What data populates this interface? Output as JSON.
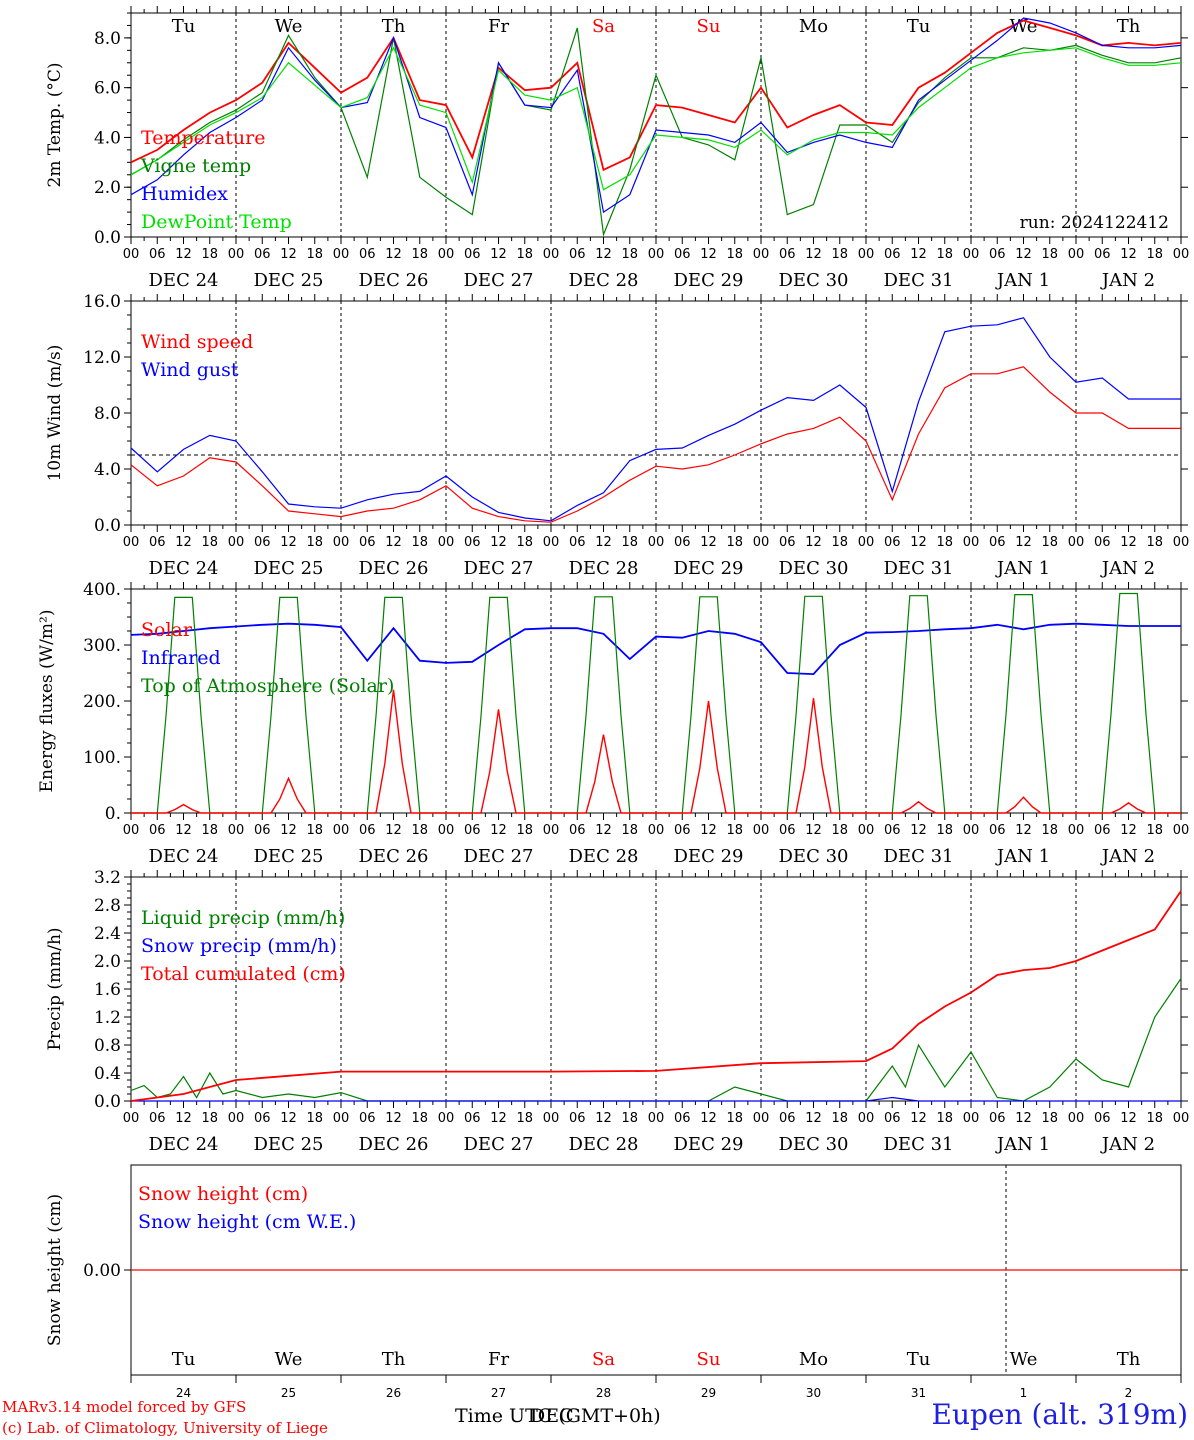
{
  "chart_data": {
    "type": "line",
    "run_label": "run: 2024122412",
    "location": "Eupen (alt. 319m)",
    "credit_line1": "MARv3.14 model forced by GFS",
    "credit_line2": "(c) Lab. of Climatology, University of Liege",
    "xlabel": "Time UTC (GMT+0h)",
    "x_overlap_text": "DEC",
    "x_range_hours": [
      0,
      240
    ],
    "hour_tick_labels": [
      "00",
      "06",
      "12",
      "18"
    ],
    "final_hour_label": "00",
    "date_labels": [
      "DEC 24",
      "DEC 25",
      "DEC 26",
      "DEC 27",
      "DEC 28",
      "DEC 29",
      "DEC 30",
      "DEC 31",
      "JAN  1",
      "JAN  2"
    ],
    "weekdays": [
      "Tu",
      "We",
      "Th",
      "Fr",
      "Sa",
      "Su",
      "Mo",
      "Tu",
      "We",
      "Th"
    ],
    "weekday_colors": [
      "#000000",
      "#000000",
      "#000000",
      "#000000",
      "#ff0000",
      "#ff0000",
      "#000000",
      "#000000",
      "#000000",
      "#000000"
    ],
    "bottom_day_numbers": [
      "24",
      "25",
      "26",
      "27",
      "28",
      "29",
      "30",
      "31",
      "1",
      "2"
    ],
    "panels": [
      {
        "id": "temperature",
        "ylabel": "2m Temp. (°C)",
        "ylim": [
          0,
          9
        ],
        "yticks": [
          0,
          2,
          4,
          6,
          8
        ],
        "ytick_labels": [
          "0.0",
          "2.0",
          "4.0",
          "6.0",
          "8.0"
        ],
        "legend": [
          "Temperature",
          "Vigne temp",
          "Humidex",
          "DewPoint Temp"
        ],
        "series": [
          {
            "name": "Temperature",
            "color": "#ff0000",
            "x": [
              0,
              6,
              12,
              18,
              24,
              30,
              36,
              42,
              48,
              54,
              60,
              66,
              72,
              78,
              84,
              90,
              96,
              102,
              108,
              114,
              120,
              126,
              132,
              138,
              144,
              150,
              156,
              162,
              168,
              174,
              180,
              186,
              192,
              198,
              204,
              210,
              216,
              222,
              228,
              234,
              240
            ],
            "values": [
              3.0,
              3.5,
              4.3,
              5.0,
              5.5,
              6.2,
              7.8,
              6.8,
              5.8,
              6.4,
              8.0,
              5.5,
              5.3,
              3.2,
              6.8,
              5.9,
              6.0,
              7.0,
              2.7,
              3.2,
              5.3,
              5.2,
              4.9,
              4.6,
              6.0,
              4.4,
              4.9,
              5.3,
              4.6,
              4.5,
              6.0,
              6.6,
              7.4,
              8.2,
              8.7,
              8.4,
              8.1,
              7.7,
              7.8,
              7.7,
              7.8
            ]
          },
          {
            "name": "Vigne temp",
            "color": "#008000",
            "x": [
              0,
              6,
              12,
              18,
              24,
              30,
              36,
              42,
              48,
              54,
              60,
              66,
              72,
              78,
              84,
              90,
              96,
              102,
              108,
              114,
              120,
              126,
              132,
              138,
              144,
              150,
              156,
              162,
              168,
              174,
              180,
              186,
              192,
              198,
              204,
              210,
              216,
              222,
              228,
              234,
              240
            ],
            "values": [
              2.5,
              3.1,
              3.9,
              4.6,
              5.1,
              5.8,
              8.1,
              6.4,
              5.2,
              2.4,
              8.0,
              2.4,
              1.6,
              0.9,
              7.0,
              5.3,
              5.1,
              8.4,
              0.1,
              2.7,
              6.5,
              4.0,
              3.7,
              3.1,
              7.2,
              0.9,
              1.3,
              4.5,
              4.5,
              3.8,
              5.4,
              6.4,
              7.2,
              7.2,
              7.6,
              7.5,
              7.7,
              7.3,
              7.0,
              7.0,
              7.2
            ]
          },
          {
            "name": "Humidex",
            "color": "#0000ff",
            "x": [
              0,
              6,
              12,
              18,
              24,
              30,
              36,
              42,
              48,
              54,
              60,
              66,
              72,
              78,
              84,
              90,
              96,
              102,
              108,
              114,
              120,
              126,
              132,
              138,
              144,
              150,
              156,
              162,
              168,
              174,
              180,
              186,
              192,
              198,
              204,
              210,
              216,
              222,
              228,
              234,
              240
            ],
            "values": [
              1.7,
              2.3,
              3.3,
              4.2,
              4.8,
              5.5,
              7.6,
              6.3,
              5.2,
              5.4,
              8.0,
              4.8,
              4.4,
              1.7,
              7.0,
              5.3,
              5.2,
              6.7,
              1.0,
              1.7,
              4.3,
              4.2,
              4.1,
              3.8,
              4.6,
              3.4,
              3.8,
              4.1,
              3.8,
              3.6,
              5.5,
              6.3,
              7.1,
              7.9,
              8.8,
              8.6,
              8.2,
              7.7,
              7.6,
              7.6,
              7.7
            ]
          },
          {
            "name": "DewPoint Temp",
            "color": "#00e000",
            "x": [
              0,
              6,
              12,
              18,
              24,
              30,
              36,
              42,
              48,
              54,
              60,
              66,
              72,
              78,
              84,
              90,
              96,
              102,
              108,
              114,
              120,
              126,
              132,
              138,
              144,
              150,
              156,
              162,
              168,
              174,
              180,
              186,
              192,
              198,
              204,
              210,
              216,
              222,
              228,
              234,
              240
            ],
            "values": [
              2.5,
              3.1,
              3.8,
              4.5,
              5.0,
              5.6,
              7.0,
              6.1,
              5.2,
              5.6,
              7.6,
              5.3,
              5.0,
              2.2,
              6.7,
              5.7,
              5.5,
              6.0,
              1.9,
              2.5,
              4.1,
              4.0,
              3.9,
              3.6,
              4.3,
              3.3,
              3.9,
              4.2,
              4.2,
              4.1,
              5.2,
              6.0,
              6.8,
              7.2,
              7.4,
              7.5,
              7.6,
              7.2,
              6.9,
              6.9,
              7.0
            ]
          }
        ]
      },
      {
        "id": "wind",
        "ylabel": "10m Wind (m/s)",
        "ylim": [
          0,
          16
        ],
        "yticks": [
          0,
          4,
          8,
          12,
          16
        ],
        "ytick_labels": [
          "0.0",
          "4.0",
          "8.0",
          "12.0",
          "16.0"
        ],
        "reference_line": 5.0,
        "legend": [
          "Wind speed",
          "Wind gust"
        ],
        "series": [
          {
            "name": "Wind speed",
            "color": "#ff0000",
            "x": [
              0,
              6,
              12,
              18,
              24,
              30,
              36,
              42,
              48,
              54,
              60,
              66,
              72,
              78,
              84,
              90,
              96,
              102,
              108,
              114,
              120,
              126,
              132,
              138,
              144,
              150,
              156,
              162,
              168,
              174,
              180,
              186,
              192,
              198,
              204,
              210,
              216,
              222,
              228,
              234,
              240
            ],
            "values": [
              4.3,
              2.8,
              3.5,
              4.8,
              4.5,
              2.8,
              1.0,
              0.8,
              0.6,
              1.0,
              1.2,
              1.8,
              2.8,
              1.2,
              0.6,
              0.3,
              0.2,
              1.0,
              2.0,
              3.2,
              4.2,
              4.0,
              4.3,
              5.0,
              5.8,
              6.5,
              6.9,
              7.7,
              6.0,
              1.8,
              6.5,
              9.8,
              10.8,
              10.8,
              11.3,
              9.5,
              8.0,
              8.0,
              6.9,
              6.9,
              6.9
            ]
          },
          {
            "name": "Wind gust",
            "color": "#0000ff",
            "x": [
              0,
              6,
              12,
              18,
              24,
              30,
              36,
              42,
              48,
              54,
              60,
              66,
              72,
              78,
              84,
              90,
              96,
              102,
              108,
              114,
              120,
              126,
              132,
              138,
              144,
              150,
              156,
              162,
              168,
              174,
              180,
              186,
              192,
              198,
              204,
              210,
              216,
              222,
              228,
              234,
              240
            ],
            "values": [
              5.5,
              3.8,
              5.4,
              6.4,
              6.0,
              3.8,
              1.5,
              1.3,
              1.2,
              1.8,
              2.2,
              2.4,
              3.5,
              2.0,
              0.9,
              0.5,
              0.3,
              1.4,
              2.3,
              4.6,
              5.4,
              5.5,
              6.4,
              7.2,
              8.2,
              9.1,
              8.9,
              10.0,
              8.4,
              2.4,
              8.8,
              13.8,
              14.2,
              14.3,
              14.8,
              12.0,
              10.2,
              10.5,
              9.0,
              9.0,
              9.0
            ]
          }
        ]
      },
      {
        "id": "fluxes",
        "ylabel": "Energy fluxes (W/m²)",
        "ylim": [
          0,
          400
        ],
        "yticks": [
          0,
          100,
          200,
          300,
          400
        ],
        "ytick_labels": [
          "0.",
          "100.",
          "200.",
          "300.",
          "400."
        ],
        "legend": [
          "Solar",
          "Infrared",
          "Top of Atmosphere (Solar)"
        ],
        "day_peaks": {
          "Solar": [
            15,
            62,
            220,
            185,
            140,
            200,
            205,
            20,
            28,
            18
          ],
          "Top of Atmosphere (Solar)": [
            385,
            385,
            385,
            385,
            386,
            386,
            387,
            388,
            390,
            392
          ]
        },
        "series": [
          {
            "name": "Infrared",
            "color": "#0000ff",
            "x": [
              0,
              6,
              12,
              18,
              24,
              30,
              36,
              42,
              48,
              54,
              60,
              66,
              72,
              78,
              84,
              90,
              96,
              102,
              108,
              114,
              120,
              126,
              132,
              138,
              144,
              150,
              156,
              162,
              168,
              174,
              180,
              186,
              192,
              198,
              204,
              210,
              216,
              222,
              228,
              234,
              240
            ],
            "values": [
              318,
              320,
              325,
              330,
              333,
              336,
              338,
              336,
              332,
              272,
              330,
              272,
              268,
              270,
              300,
              328,
              330,
              330,
              320,
              275,
              315,
              313,
              325,
              320,
              305,
              250,
              248,
              300,
              322,
              323,
              325,
              328,
              330,
              336,
              328,
              336,
              338,
              336,
              334,
              334,
              334
            ]
          }
        ]
      },
      {
        "id": "precip",
        "ylabel": "Precip (mm/h)",
        "ylim": [
          0,
          3.2
        ],
        "yticks": [
          0,
          0.4,
          0.8,
          1.2,
          1.6,
          2.0,
          2.4,
          2.8,
          3.2
        ],
        "ytick_labels": [
          "0.0",
          "0.4",
          "0.8",
          "1.2",
          "1.6",
          "2.0",
          "2.4",
          "2.8",
          "3.2"
        ],
        "legend": [
          "Liquid precip (mm/h)",
          "Snow precip (mm/h)",
          "Total cumulated (cm)"
        ],
        "series": [
          {
            "name": "Liquid precip (mm/h)",
            "color": "#008000",
            "x": [
              0,
              3,
              6,
              9,
              12,
              15,
              18,
              21,
              24,
              30,
              36,
              42,
              48,
              54,
              60,
              66,
              72,
              96,
              120,
              132,
              138,
              144,
              150,
              156,
              162,
              168,
              174,
              177,
              180,
              186,
              192,
              198,
              204,
              210,
              216,
              222,
              228,
              234,
              240
            ],
            "values": [
              0.15,
              0.22,
              0.05,
              0.1,
              0.35,
              0.05,
              0.4,
              0.1,
              0.15,
              0.05,
              0.1,
              0.05,
              0.12,
              0.0,
              0.0,
              0.0,
              0.0,
              0.0,
              0.0,
              0.0,
              0.2,
              0.1,
              0.0,
              0.0,
              0.0,
              0.0,
              0.5,
              0.2,
              0.8,
              0.2,
              0.7,
              0.05,
              0.0,
              0.2,
              0.6,
              0.3,
              0.2,
              1.2,
              1.75
            ]
          },
          {
            "name": "Snow precip (mm/h)",
            "color": "#0000ff",
            "x": [
              0,
              168,
              174,
              180,
              240
            ],
            "values": [
              0.0,
              0.0,
              0.05,
              0.0,
              0.0
            ]
          },
          {
            "name": "Total cumulated (cm)",
            "color": "#ff0000",
            "x": [
              0,
              12,
              24,
              36,
              48,
              96,
              120,
              144,
              168,
              174,
              180,
              186,
              192,
              198,
              204,
              210,
              216,
              222,
              228,
              234,
              240
            ],
            "values": [
              0.0,
              0.1,
              0.3,
              0.36,
              0.42,
              0.42,
              0.43,
              0.54,
              0.57,
              0.75,
              1.1,
              1.35,
              1.55,
              1.8,
              1.87,
              1.9,
              2.0,
              2.15,
              2.3,
              2.45,
              3.0
            ]
          }
        ]
      },
      {
        "id": "snow",
        "ylabel": "Snow height (cm)",
        "ylim": [
          -1,
          1
        ],
        "yticks": [
          0
        ],
        "ytick_labels": [
          "0.00"
        ],
        "legend": [
          "Snow height (cm)",
          "Snow height (cm W.E.)"
        ],
        "series": [
          {
            "name": "Snow height (cm)",
            "color": "#ff0000",
            "x": [
              0,
              240
            ],
            "values": [
              0.0,
              0.0
            ]
          }
        ]
      }
    ]
  }
}
